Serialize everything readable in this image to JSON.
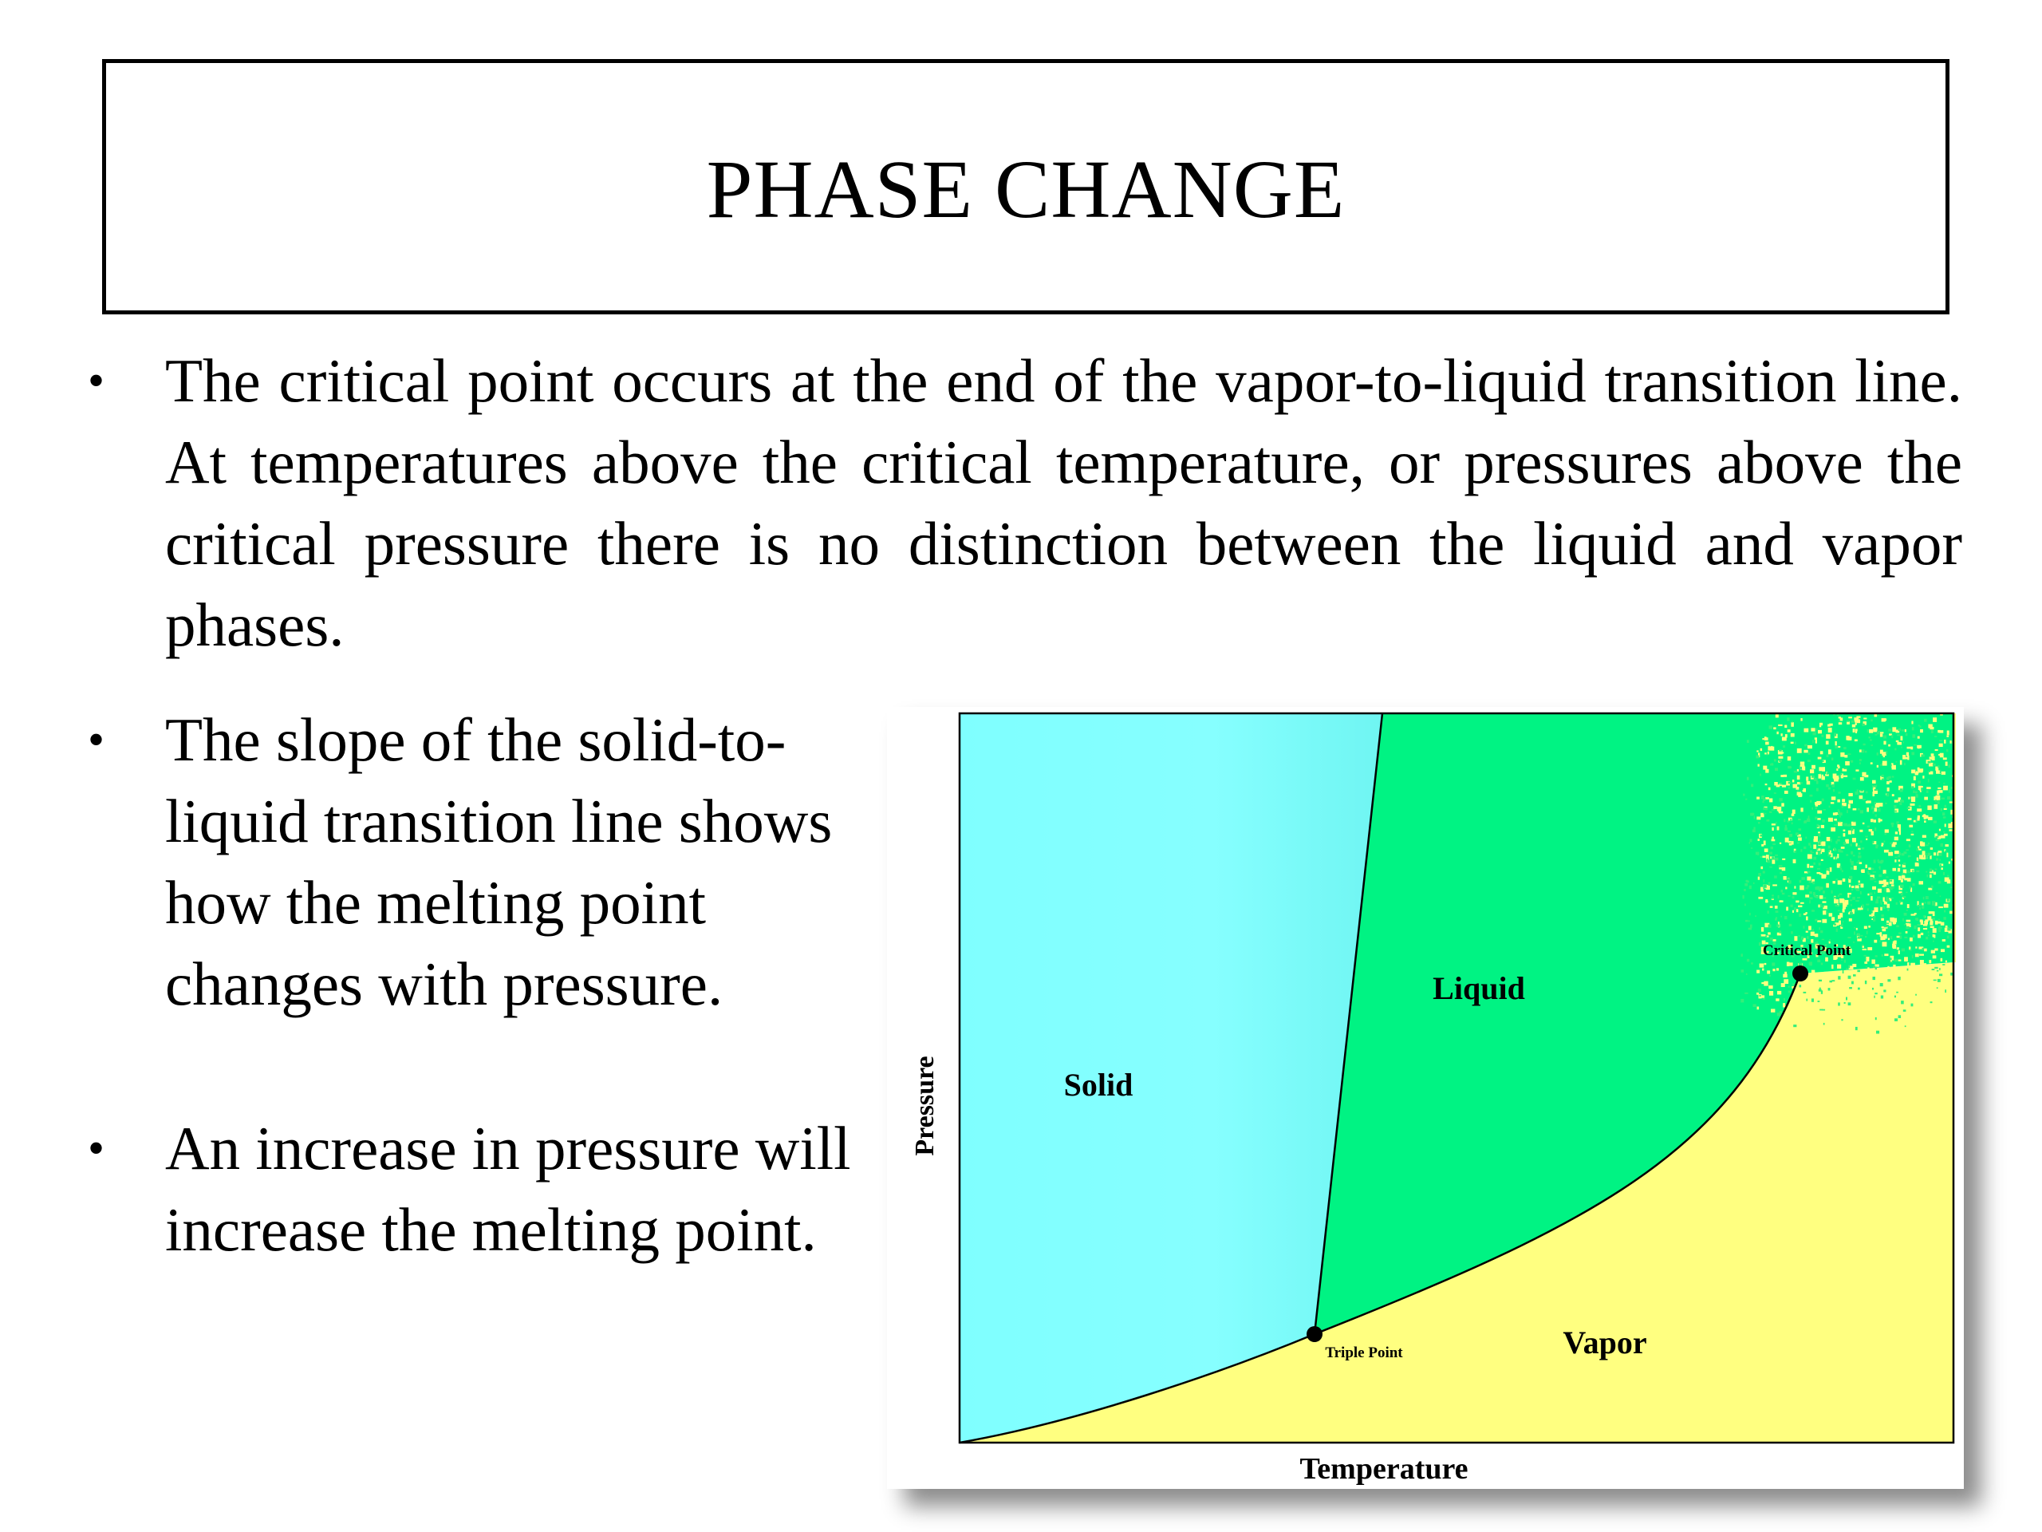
{
  "slide": {
    "title": "PHASE CHANGE",
    "bullet_marker": "•",
    "bullets": [
      "The critical point occurs at the end of the vapor-to-liquid transition line. At temperatures above the critical temperature, or pressures above the critical pressure there is no distinction between the liquid and vapor phases.",
      "The slope of the solid-to-liquid transition line shows how the melting point changes with pressure.",
      "An increase in pressure will increase the melting point."
    ]
  },
  "diagram": {
    "regions": {
      "solid": "Solid",
      "liquid": "Liquid",
      "vapor": "Vapor"
    },
    "points": {
      "triple": "Triple Point",
      "critical": "Critical Point"
    },
    "axes": {
      "x": "Temperature",
      "y": "Pressure"
    },
    "colors": {
      "solid": "#7fffff",
      "liquid": "#00f383",
      "vapor": "#ffff80",
      "supercritical_speckle": "#33ee7a",
      "lines": "#000000"
    }
  }
}
